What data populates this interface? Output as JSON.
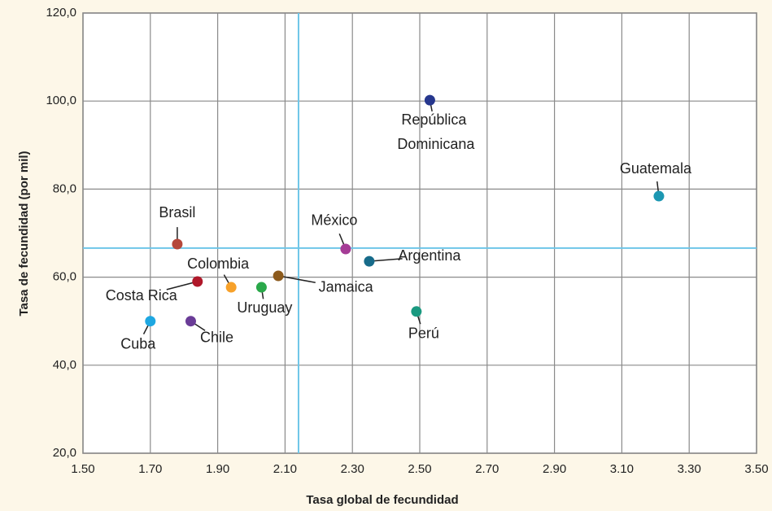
{
  "chart_data": {
    "type": "scatter",
    "x_label": "Tasa global de fecundidad",
    "y_label": "Tasa de fecundidad (por mil)",
    "xlim": [
      1.5,
      3.5
    ],
    "xticks": [
      {
        "value": 1.5,
        "label": "1.50"
      },
      {
        "value": 1.7,
        "label": "1.70"
      },
      {
        "value": 1.9,
        "label": "1.90"
      },
      {
        "value": 2.1,
        "label": "2.10"
      },
      {
        "value": 2.3,
        "label": "2.30"
      },
      {
        "value": 2.5,
        "label": "2.50"
      },
      {
        "value": 2.7,
        "label": "2.70"
      },
      {
        "value": 2.9,
        "label": "2.90"
      },
      {
        "value": 3.1,
        "label": "3.10"
      },
      {
        "value": 3.3,
        "label": "3.30"
      },
      {
        "value": 3.5,
        "label": "3.50"
      }
    ],
    "ylim": [
      20,
      120
    ],
    "yticks": [
      {
        "value": 20,
        "label": "20,0"
      },
      {
        "value": 40,
        "label": "40,0"
      },
      {
        "value": 60,
        "label": "60,0"
      },
      {
        "value": 80,
        "label": "80,0"
      },
      {
        "value": 100,
        "label": "100,0"
      },
      {
        "value": 120,
        "label": "120,0"
      }
    ],
    "grid": true,
    "x_reference": 2.14,
    "y_reference": 66.6,
    "reference_color": "#6ec6e8",
    "series": [
      {
        "name": "Cuba",
        "color": "#1ea7e1",
        "x": [
          1.7
        ],
        "values": [
          50.0
        ]
      },
      {
        "name": "Chile",
        "color": "#6a3c97",
        "x": [
          1.82
        ],
        "values": [
          50.0
        ]
      },
      {
        "name": "Brasil",
        "color": "#b5473a",
        "x": [
          1.78
        ],
        "values": [
          67.5
        ]
      },
      {
        "name": "Costa Rica",
        "color": "#b0182a",
        "x": [
          1.84
        ],
        "values": [
          59.0
        ]
      },
      {
        "name": "Colombia",
        "color": "#f7a12a",
        "x": [
          1.94
        ],
        "values": [
          57.7
        ]
      },
      {
        "name": "Uruguay",
        "color": "#2aa84a",
        "x": [
          2.03
        ],
        "values": [
          57.7
        ]
      },
      {
        "name": "Jamaica",
        "color": "#8c5a1c",
        "x": [
          2.08
        ],
        "values": [
          60.3
        ]
      },
      {
        "name": "México",
        "color": "#a53c96",
        "x": [
          2.28
        ],
        "values": [
          66.4
        ]
      },
      {
        "name": "Argentina",
        "color": "#176b8a",
        "x": [
          2.35
        ],
        "values": [
          63.6
        ]
      },
      {
        "name": "Perú",
        "color": "#1a9980",
        "x": [
          2.49
        ],
        "values": [
          52.2
        ]
      },
      {
        "name": "República Dominicana",
        "color": "#26378e",
        "x": [
          2.53
        ],
        "values": [
          100.2
        ]
      },
      {
        "name": "Guatemala",
        "color": "#1c97b2",
        "x": [
          3.21
        ],
        "values": [
          78.4
        ]
      }
    ]
  }
}
